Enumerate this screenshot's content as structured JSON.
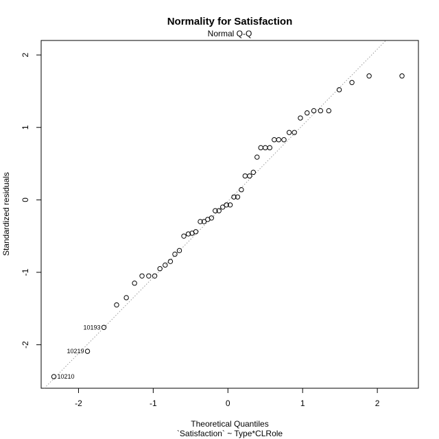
{
  "chart_data": {
    "type": "scatter",
    "title": "Normality for Satisfaction",
    "subtitle": "Normal Q-Q",
    "xlabel": "Theoretical Quantiles",
    "xlabel_sub": "`Satisfaction` ~ Type*CLRole",
    "ylabel": "Standardized residuals",
    "xlim": [
      -2.5,
      2.55
    ],
    "ylim": [
      -2.6,
      2.2
    ],
    "x_ticks": [
      -2,
      -1,
      0,
      1,
      2
    ],
    "x_tick_labels": [
      "-2",
      "-1",
      "0",
      "1",
      "2"
    ],
    "y_ticks": [
      -2,
      -1,
      0,
      1,
      2
    ],
    "y_tick_labels": [
      "-2",
      "-1",
      "0",
      "1",
      "2"
    ],
    "reference_line": {
      "style": "dotted",
      "color": "#999999",
      "slope": 1.05,
      "intercept": -0.02
    },
    "points": [
      {
        "x": -2.33,
        "y": -2.44
      },
      {
        "x": -1.88,
        "y": -2.09
      },
      {
        "x": -1.66,
        "y": -1.76
      },
      {
        "x": -1.49,
        "y": -1.45
      },
      {
        "x": -1.36,
        "y": -1.35
      },
      {
        "x": -1.25,
        "y": -1.15
      },
      {
        "x": -1.15,
        "y": -1.05
      },
      {
        "x": -1.06,
        "y": -1.05
      },
      {
        "x": -0.98,
        "y": -1.05
      },
      {
        "x": -0.91,
        "y": -0.95
      },
      {
        "x": -0.84,
        "y": -0.9
      },
      {
        "x": -0.77,
        "y": -0.85
      },
      {
        "x": -0.71,
        "y": -0.75
      },
      {
        "x": -0.65,
        "y": -0.7
      },
      {
        "x": -0.59,
        "y": -0.5
      },
      {
        "x": -0.53,
        "y": -0.47
      },
      {
        "x": -0.48,
        "y": -0.46
      },
      {
        "x": -0.43,
        "y": -0.44
      },
      {
        "x": -0.37,
        "y": -0.3
      },
      {
        "x": -0.32,
        "y": -0.3
      },
      {
        "x": -0.27,
        "y": -0.27
      },
      {
        "x": -0.22,
        "y": -0.25
      },
      {
        "x": -0.17,
        "y": -0.15
      },
      {
        "x": -0.12,
        "y": -0.15
      },
      {
        "x": -0.07,
        "y": -0.1
      },
      {
        "x": -0.02,
        "y": -0.07
      },
      {
        "x": 0.03,
        "y": -0.07
      },
      {
        "x": 0.08,
        "y": 0.04
      },
      {
        "x": 0.13,
        "y": 0.04
      },
      {
        "x": 0.18,
        "y": 0.14
      },
      {
        "x": 0.23,
        "y": 0.33
      },
      {
        "x": 0.29,
        "y": 0.33
      },
      {
        "x": 0.34,
        "y": 0.38
      },
      {
        "x": 0.39,
        "y": 0.59
      },
      {
        "x": 0.44,
        "y": 0.72
      },
      {
        "x": 0.5,
        "y": 0.72
      },
      {
        "x": 0.56,
        "y": 0.72
      },
      {
        "x": 0.62,
        "y": 0.83
      },
      {
        "x": 0.68,
        "y": 0.83
      },
      {
        "x": 0.75,
        "y": 0.83
      },
      {
        "x": 0.82,
        "y": 0.93
      },
      {
        "x": 0.89,
        "y": 0.93
      },
      {
        "x": 0.97,
        "y": 1.13
      },
      {
        "x": 1.06,
        "y": 1.2
      },
      {
        "x": 1.15,
        "y": 1.23
      },
      {
        "x": 1.24,
        "y": 1.23
      },
      {
        "x": 1.35,
        "y": 1.23
      },
      {
        "x": 1.49,
        "y": 1.52
      },
      {
        "x": 1.66,
        "y": 1.62
      },
      {
        "x": 1.89,
        "y": 1.71
      },
      {
        "x": 2.33,
        "y": 1.71
      }
    ],
    "point_labels": [
      {
        "text": "10210",
        "x": -2.33,
        "y": -2.44,
        "side": "right"
      },
      {
        "text": "10219",
        "x": -1.88,
        "y": -2.09,
        "side": "left"
      },
      {
        "text": "10193",
        "x": -1.66,
        "y": -1.76,
        "side": "left"
      }
    ]
  }
}
